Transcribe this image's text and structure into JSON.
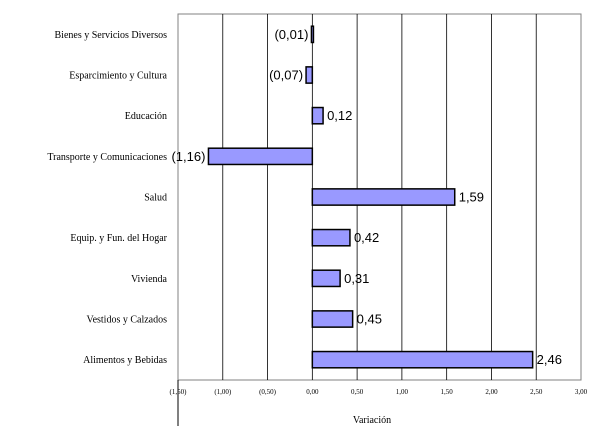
{
  "chart_data": {
    "type": "bar",
    "orientation": "horizontal",
    "categories": [
      "Bienes y Servicios Diversos",
      "Esparcimiento y Cultura",
      "Educación",
      "Transporte y Comunicaciones",
      "Salud",
      "Equip. y Fun. del Hogar",
      "Vivienda",
      "Vestidos y Calzados",
      "Alimentos y Bebidas"
    ],
    "values": [
      -0.01,
      -0.07,
      0.12,
      -1.16,
      1.59,
      0.42,
      0.31,
      0.45,
      2.46
    ],
    "data_labels": [
      "(0,01)",
      "(0,07)",
      "0,12",
      "(1,16)",
      "1,59",
      "0,42",
      "0,31",
      "0,45",
      "2,46"
    ],
    "xlabel": "Variación",
    "xlim": [
      -1.5,
      3.0
    ],
    "xticks": [
      -1.5,
      -1.0,
      -0.5,
      0.0,
      0.5,
      1.0,
      1.5,
      2.0,
      2.5,
      3.0
    ],
    "xtick_labels": [
      "(1,50)",
      "(1,00)",
      "(0,50)",
      "0,00",
      "0,50",
      "1,00",
      "1,50",
      "2,00",
      "2,50",
      "3,00"
    ],
    "grid": "vertical",
    "legend": "none",
    "colors": {
      "bar_fill": "#9999ff",
      "bar_stroke": "#000000",
      "grid": "#000000"
    }
  }
}
